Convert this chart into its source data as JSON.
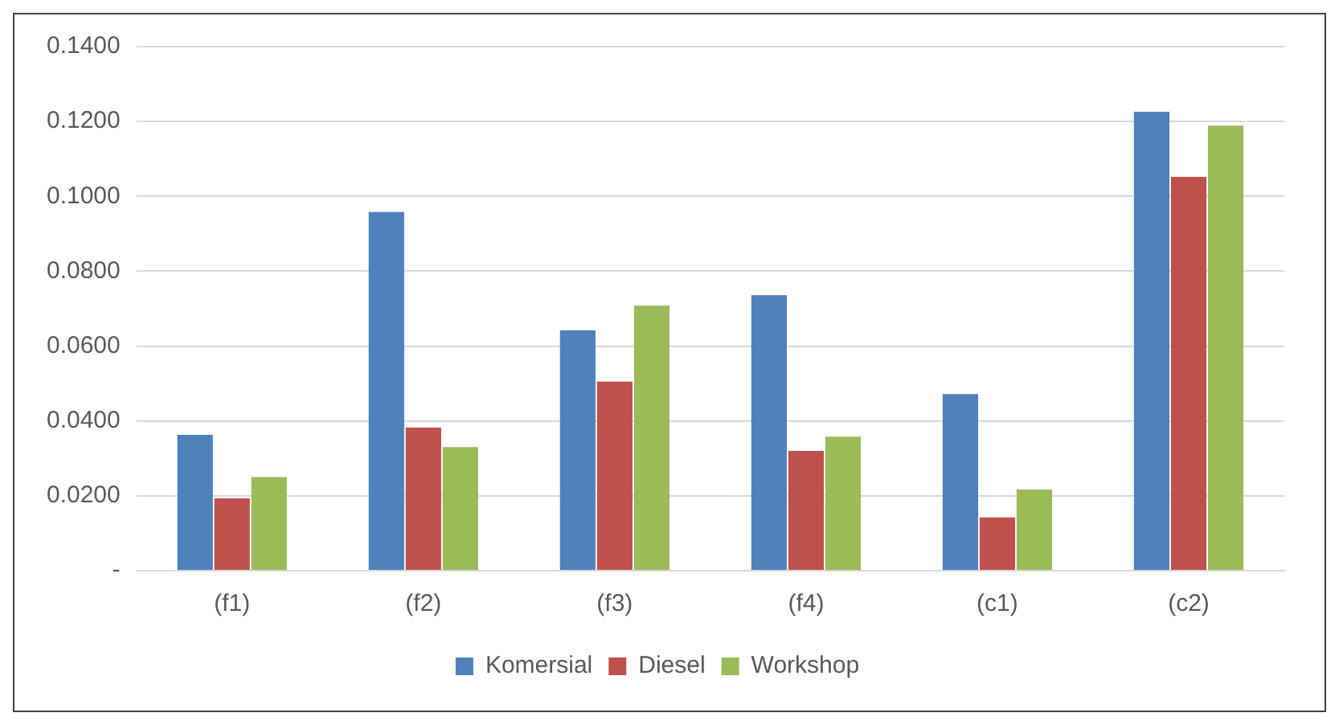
{
  "chart_data": {
    "type": "bar",
    "categories": [
      "(f1)",
      "(f2)",
      "(f3)",
      "(f4)",
      "(c1)",
      "(c2)"
    ],
    "series": [
      {
        "name": "Komersial",
        "color": "#4f81bd",
        "values": [
          0.0363,
          0.0958,
          0.0642,
          0.0736,
          0.0472,
          0.1226
        ]
      },
      {
        "name": "Diesel",
        "color": "#c0504d",
        "values": [
          0.0193,
          0.0382,
          0.0505,
          0.032,
          0.0142,
          0.1052
        ]
      },
      {
        "name": "Workshop",
        "color": "#9bbb59",
        "values": [
          0.025,
          0.033,
          0.0708,
          0.0358,
          0.0217,
          0.1189
        ]
      }
    ],
    "ylim": [
      0,
      0.14
    ],
    "yticks": [
      {
        "value": 0,
        "label": "-"
      },
      {
        "value": 0.02,
        "label": "0.0200"
      },
      {
        "value": 0.04,
        "label": "0.0400"
      },
      {
        "value": 0.06,
        "label": "0.0600"
      },
      {
        "value": 0.08,
        "label": "0.0800"
      },
      {
        "value": 0.1,
        "label": "0.1000"
      },
      {
        "value": 0.12,
        "label": "0.1200"
      },
      {
        "value": 0.14,
        "label": "0.1400"
      }
    ],
    "grid": "y",
    "legend": "bottom"
  }
}
